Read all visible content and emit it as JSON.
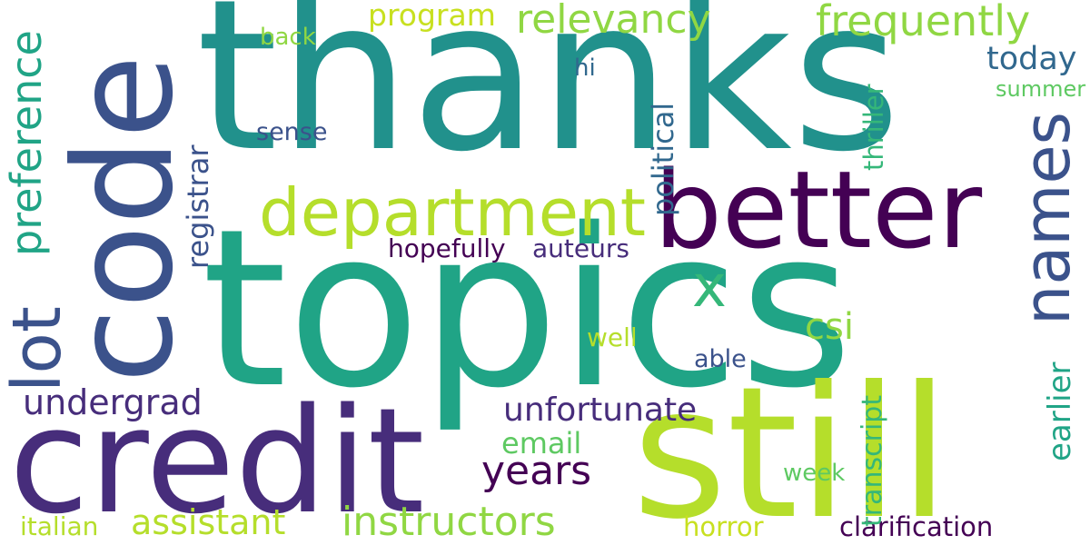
{
  "palette": {
    "background": "#ffffff",
    "dark_purple": "#440154",
    "indigo": "#472d7b",
    "blue": "#3b528b",
    "steel_blue": "#31688e",
    "teal": "#21918c",
    "jade": "#20a486",
    "green": "#35b779",
    "light_green": "#5ec962",
    "lime": "#90d743",
    "yellow_green": "#b5de2b",
    "yellow": "#c8e020"
  },
  "words": {
    "thanks": "thanks",
    "topics": "topics",
    "code": "code",
    "credit": "credit",
    "still": "still",
    "better": "better",
    "department": "department",
    "names": "names",
    "lot": "lot",
    "preference": "preference",
    "relevancy": "relevancy",
    "frequently": "frequently",
    "program": "program",
    "today": "today",
    "back": "back",
    "hi": "hi",
    "summer": "summer",
    "registrar": "registrar",
    "sense": "sense",
    "political": "political",
    "thriller": "thriller",
    "x": "x",
    "hopefully": "hopefully",
    "auteurs": "auteurs",
    "csi": "csi",
    "well": "well",
    "able": "able",
    "undergrad": "undergrad",
    "unfortunate": "unfortunate",
    "email": "email",
    "years": "years",
    "earlier": "earlier",
    "transcript": "transcript",
    "week": "week",
    "assistant": "assistant",
    "instructors": "instructors",
    "italian": "italian",
    "horror": "horror",
    "clarification": "clarification"
  }
}
